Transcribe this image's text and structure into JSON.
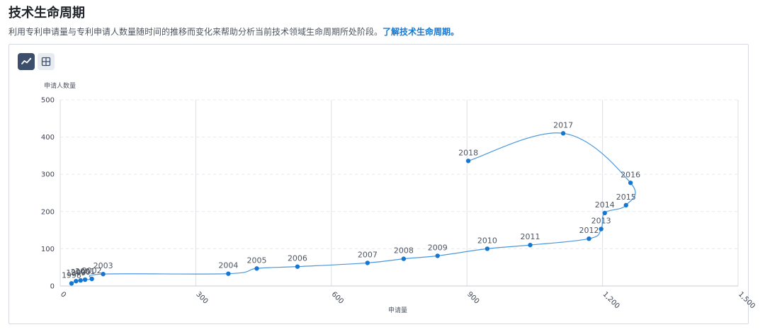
{
  "header": {
    "title": "技术生命周期",
    "description": "利用专利申请量与专利申请人数量随时间的推移而变化来帮助分析当前技术领域生命周期所处阶段。",
    "link_text": "了解技术生命周期。"
  },
  "toolbar": {
    "line_view_icon": "line-chart-icon",
    "table_view_icon": "table-grid-icon",
    "active_view": "line"
  },
  "colors": {
    "line": "#4a97dd",
    "point": "#1677d2",
    "active_button": "#3d4e6d",
    "link": "#1677d2"
  },
  "chart_data": {
    "type": "line",
    "xlabel": "申请量",
    "ylabel": "申请人数量",
    "xlim": [
      0,
      1500
    ],
    "ylim": [
      0,
      500
    ],
    "x_ticks": [
      "0",
      "300",
      "600",
      "900",
      "1,200",
      "1,500"
    ],
    "y_ticks": [
      "0",
      "100",
      "200",
      "300",
      "400",
      "500"
    ],
    "grid": "vertical solid, horizontal dashed",
    "points": [
      {
        "label": "1998",
        "x": 25,
        "y": 7
      },
      {
        "label": "1999",
        "x": 35,
        "y": 13
      },
      {
        "label": "2000",
        "x": 45,
        "y": 15
      },
      {
        "label": "2001",
        "x": 55,
        "y": 17
      },
      {
        "label": "2002",
        "x": 70,
        "y": 19
      },
      {
        "label": "2003",
        "x": 95,
        "y": 32
      },
      {
        "label": "2004",
        "x": 372,
        "y": 33
      },
      {
        "label": "2005",
        "x": 435,
        "y": 47
      },
      {
        "label": "2006",
        "x": 525,
        "y": 52
      },
      {
        "label": "2007",
        "x": 680,
        "y": 62
      },
      {
        "label": "2008",
        "x": 760,
        "y": 73
      },
      {
        "label": "2009",
        "x": 835,
        "y": 81
      },
      {
        "label": "2010",
        "x": 945,
        "y": 100
      },
      {
        "label": "2011",
        "x": 1040,
        "y": 110
      },
      {
        "label": "2012",
        "x": 1170,
        "y": 127
      },
      {
        "label": "2013",
        "x": 1197,
        "y": 153
      },
      {
        "label": "2014",
        "x": 1205,
        "y": 196
      },
      {
        "label": "2015",
        "x": 1252,
        "y": 217
      },
      {
        "label": "2016",
        "x": 1262,
        "y": 277
      },
      {
        "label": "2017",
        "x": 1113,
        "y": 410
      },
      {
        "label": "2018",
        "x": 903,
        "y": 336
      }
    ]
  }
}
